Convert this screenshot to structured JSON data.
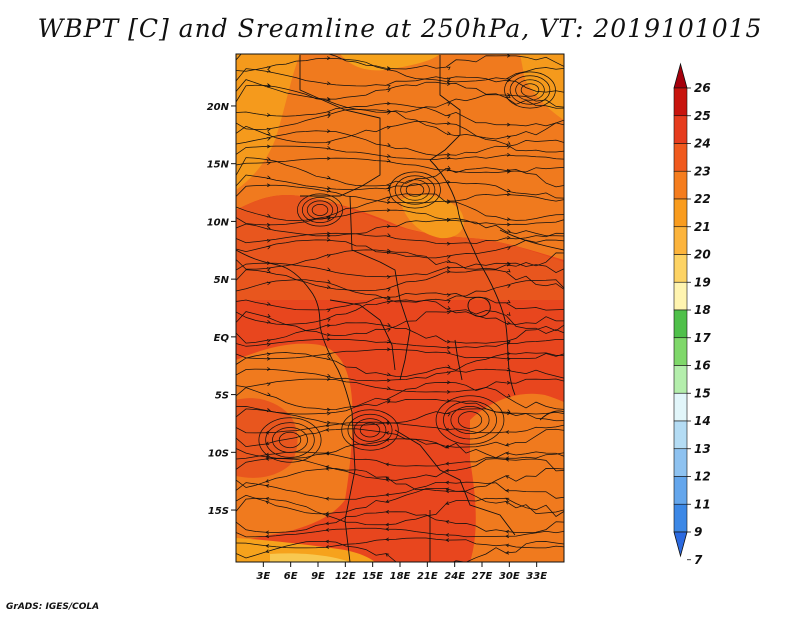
{
  "title": "WBPT [C] and Sreamline at 250hPa, VT: 2019101015",
  "credit": "GrADS: IGES/COLA",
  "map": {
    "lon_range": [
      0,
      36
    ],
    "lat_range": [
      -19.5,
      24.5
    ],
    "lon_ticks": [
      "3E",
      "6E",
      "9E",
      "12E",
      "15E",
      "18E",
      "21E",
      "24E",
      "27E",
      "30E",
      "33E"
    ],
    "lat_ticks": [
      "20N",
      "15N",
      "10N",
      "5N",
      "EQ",
      "5S",
      "10S",
      "15S"
    ],
    "field_colors": {
      "dark_orange_red": "#e8461e",
      "orange": "#f07a1e",
      "light_orange": "#f6a21c",
      "pale": "#f8c850"
    }
  },
  "colorbar": {
    "labels": [
      "26",
      "25",
      "24",
      "23",
      "22",
      "21",
      "20",
      "19",
      "18",
      "17",
      "16",
      "15",
      "14",
      "13",
      "12",
      "11",
      "9",
      "7"
    ],
    "colors": [
      "#a5000c",
      "#c8140e",
      "#e63c1e",
      "#f05a1e",
      "#f57d1e",
      "#f99c1e",
      "#fcb43c",
      "#fdd364",
      "#fff4b0",
      "#4fc04a",
      "#7fd86a",
      "#b4eeac",
      "#e2f6fa",
      "#b4dcf4",
      "#8ec2f0",
      "#64a6ec",
      "#3c88e6",
      "#2c6ae0"
    ]
  }
}
